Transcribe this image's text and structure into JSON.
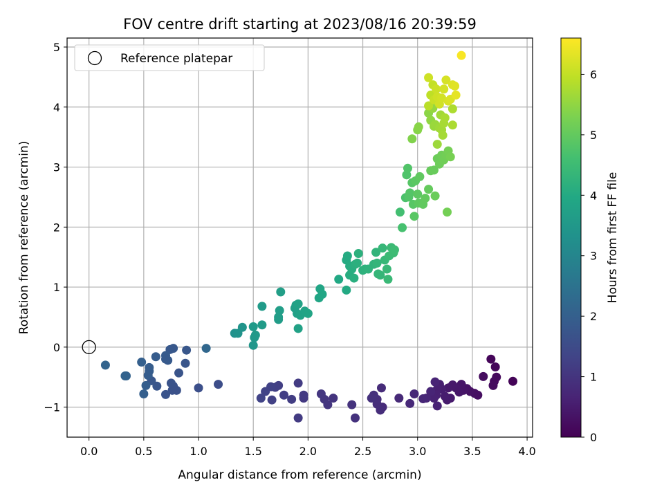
{
  "chart_data": {
    "type": "scatter",
    "title": "FOV centre drift starting at 2023/08/16 20:39:59",
    "xlabel": "Angular distance from reference (arcmin)",
    "ylabel": "Rotation from reference (arcmin)",
    "xlim": [
      -0.2,
      4.05
    ],
    "ylim": [
      -1.5,
      5.15
    ],
    "xticks": [
      0.0,
      0.5,
      1.0,
      1.5,
      2.0,
      2.5,
      3.0,
      3.5,
      4.0
    ],
    "xtick_labels": [
      "0.0",
      "0.5",
      "1.0",
      "1.5",
      "2.0",
      "2.5",
      "3.0",
      "3.5",
      "4.0"
    ],
    "yticks": [
      -1,
      0,
      1,
      2,
      3,
      4,
      5
    ],
    "ytick_labels": [
      "−1",
      "0",
      "1",
      "2",
      "3",
      "4",
      "5"
    ],
    "grid": true,
    "colormap": "viridis",
    "colorbar": {
      "label": "Hours from first FF file",
      "range": [
        0,
        6.6
      ],
      "ticks": [
        0,
        1,
        2,
        3,
        4,
        5,
        6
      ],
      "tick_labels": [
        "0",
        "1",
        "2",
        "3",
        "4",
        "5",
        "6"
      ]
    },
    "legend": {
      "placement": "top-left",
      "entries": [
        {
          "label": "Reference platepar",
          "marker": "open-circle"
        }
      ]
    },
    "reference_point": {
      "x": 0.0,
      "y": 0.0
    },
    "series": [
      {
        "columns": [
          "x",
          "y",
          "hours"
        ],
        "points": [
          [
            3.87,
            -0.57,
            0.05
          ],
          [
            3.67,
            -0.2,
            0.1
          ],
          [
            3.71,
            -0.33,
            0.12
          ],
          [
            3.72,
            -0.5,
            0.15
          ],
          [
            3.7,
            -0.57,
            0.17
          ],
          [
            3.69,
            -0.64,
            0.2
          ],
          [
            3.6,
            -0.49,
            0.22
          ],
          [
            3.55,
            -0.8,
            0.25
          ],
          [
            3.52,
            -0.77,
            0.27
          ],
          [
            3.48,
            -0.74,
            0.3
          ],
          [
            3.45,
            -0.69,
            0.32
          ],
          [
            3.42,
            -0.72,
            0.35
          ],
          [
            3.4,
            -0.62,
            0.37
          ],
          [
            3.38,
            -0.75,
            0.4
          ],
          [
            3.35,
            -0.68,
            0.42
          ],
          [
            3.32,
            -0.63,
            0.44
          ],
          [
            3.28,
            -0.68,
            0.46
          ],
          [
            3.3,
            -0.85,
            0.48
          ],
          [
            3.27,
            -0.88,
            0.5
          ],
          [
            3.25,
            -0.82,
            0.52
          ],
          [
            3.22,
            -0.7,
            0.54
          ],
          [
            3.2,
            -0.62,
            0.56
          ],
          [
            3.18,
            -0.7,
            0.58
          ],
          [
            3.17,
            -0.8,
            0.6
          ],
          [
            3.15,
            -0.85,
            0.62
          ],
          [
            3.18,
            -0.98,
            0.64
          ],
          [
            3.16,
            -0.58,
            0.66
          ],
          [
            3.12,
            -0.74,
            0.68
          ],
          [
            3.08,
            -0.85,
            0.7
          ],
          [
            3.05,
            -0.86,
            0.72
          ],
          [
            2.97,
            -0.78,
            0.74
          ],
          [
            2.93,
            -0.94,
            0.76
          ],
          [
            2.83,
            -0.85,
            0.78
          ],
          [
            2.68,
            -1.0,
            0.8
          ],
          [
            2.67,
            -0.68,
            0.82
          ],
          [
            2.66,
            -1.05,
            0.84
          ],
          [
            2.63,
            -0.95,
            0.86
          ],
          [
            2.63,
            -0.87,
            0.88
          ],
          [
            2.6,
            -0.8,
            0.9
          ],
          [
            2.58,
            -0.85,
            0.92
          ],
          [
            2.43,
            -1.18,
            0.95
          ],
          [
            2.4,
            -0.96,
            0.97
          ],
          [
            2.23,
            -0.85,
            1.0
          ],
          [
            2.18,
            -0.96,
            1.02
          ],
          [
            2.15,
            -0.87,
            1.04
          ],
          [
            2.12,
            -0.78,
            1.06
          ],
          [
            1.96,
            -0.85,
            1.09
          ],
          [
            1.96,
            -0.8,
            1.12
          ],
          [
            1.91,
            -1.18,
            1.14
          ],
          [
            1.91,
            -0.6,
            1.16
          ],
          [
            1.85,
            -0.87,
            1.18
          ],
          [
            1.78,
            -0.8,
            1.2
          ],
          [
            1.73,
            -0.64,
            1.22
          ],
          [
            1.7,
            -0.67,
            1.24
          ],
          [
            1.67,
            -0.88,
            1.26
          ],
          [
            1.66,
            -0.66,
            1.28
          ],
          [
            1.61,
            -0.74,
            1.3
          ],
          [
            1.57,
            -0.85,
            1.32
          ],
          [
            1.18,
            -0.62,
            1.55
          ],
          [
            1.0,
            -0.68,
            1.6
          ],
          [
            0.88,
            -0.27,
            1.75
          ],
          [
            0.89,
            -0.05,
            1.78
          ],
          [
            0.82,
            -0.43,
            1.7
          ],
          [
            0.8,
            -0.72,
            1.65
          ],
          [
            0.77,
            -0.65,
            1.67
          ],
          [
            0.77,
            -0.02,
            1.8
          ],
          [
            0.76,
            -0.72,
            1.66
          ],
          [
            0.75,
            -0.6,
            1.68
          ],
          [
            0.74,
            -0.04,
            1.82
          ],
          [
            0.72,
            -0.22,
            1.85
          ],
          [
            0.7,
            -0.14,
            1.87
          ],
          [
            0.7,
            -0.2,
            1.86
          ],
          [
            0.7,
            -0.79,
            1.72
          ],
          [
            0.62,
            -0.65,
            1.74
          ],
          [
            0.61,
            -0.16,
            1.9
          ],
          [
            0.57,
            -0.56,
            1.76
          ],
          [
            0.55,
            -0.34,
            1.92
          ],
          [
            0.55,
            -0.4,
            1.93
          ],
          [
            0.54,
            -0.47,
            1.94
          ],
          [
            0.52,
            -0.64,
            1.96
          ],
          [
            0.5,
            -0.78,
            1.97
          ],
          [
            0.48,
            -0.25,
            2.0
          ],
          [
            0.34,
            -0.48,
            2.05
          ],
          [
            0.33,
            -0.48,
            2.08
          ],
          [
            0.15,
            -0.3,
            2.12
          ],
          [
            1.07,
            -0.02,
            2.2
          ],
          [
            1.33,
            0.23,
            3.3
          ],
          [
            1.36,
            0.23,
            3.35
          ],
          [
            1.4,
            0.33,
            3.4
          ],
          [
            1.5,
            0.03,
            3.45
          ],
          [
            1.51,
            0.16,
            3.5
          ],
          [
            1.52,
            0.2,
            3.52
          ],
          [
            1.5,
            0.34,
            3.55
          ],
          [
            1.58,
            0.68,
            3.58
          ],
          [
            1.58,
            0.37,
            3.6
          ],
          [
            1.73,
            0.46,
            3.62
          ],
          [
            1.73,
            0.5,
            3.64
          ],
          [
            1.74,
            0.61,
            3.66
          ],
          [
            1.75,
            0.92,
            3.68
          ],
          [
            1.88,
            0.65,
            3.7
          ],
          [
            1.89,
            0.7,
            3.72
          ],
          [
            1.9,
            0.56,
            3.74
          ],
          [
            1.91,
            0.31,
            3.76
          ],
          [
            1.91,
            0.72,
            3.78
          ],
          [
            1.93,
            0.53,
            3.8
          ],
          [
            1.97,
            0.6,
            3.82
          ],
          [
            2.0,
            0.56,
            3.84
          ],
          [
            2.1,
            0.82,
            3.86
          ],
          [
            2.11,
            0.97,
            3.88
          ],
          [
            2.13,
            0.88,
            3.9
          ],
          [
            2.28,
            1.13,
            3.95
          ],
          [
            2.35,
            0.95,
            4.0
          ],
          [
            2.35,
            1.45,
            4.02
          ],
          [
            2.36,
            1.52,
            4.04
          ],
          [
            2.38,
            1.35,
            4.06
          ],
          [
            2.38,
            1.2,
            4.08
          ],
          [
            2.4,
            1.3,
            4.1
          ],
          [
            2.42,
            1.15,
            4.12
          ],
          [
            2.43,
            1.38,
            4.14
          ],
          [
            2.45,
            1.4,
            4.16
          ],
          [
            2.46,
            1.56,
            4.18
          ],
          [
            2.5,
            1.28,
            4.2
          ],
          [
            2.52,
            1.3,
            4.22
          ],
          [
            2.55,
            1.3,
            4.24
          ],
          [
            2.6,
            1.38,
            4.26
          ],
          [
            2.62,
            1.58,
            4.28
          ],
          [
            2.63,
            1.4,
            4.3
          ],
          [
            2.64,
            1.22,
            4.32
          ],
          [
            2.66,
            1.2,
            4.34
          ],
          [
            2.68,
            1.65,
            4.36
          ],
          [
            2.7,
            1.45,
            4.38
          ],
          [
            2.72,
            1.3,
            4.4
          ],
          [
            2.73,
            1.13,
            4.42
          ],
          [
            2.74,
            1.52,
            4.44
          ],
          [
            2.76,
            1.66,
            4.46
          ],
          [
            2.78,
            1.57,
            4.48
          ],
          [
            2.79,
            1.62,
            4.5
          ],
          [
            2.84,
            2.25,
            4.6
          ],
          [
            2.86,
            1.99,
            4.65
          ],
          [
            2.89,
            2.49,
            4.7
          ],
          [
            2.9,
            2.87,
            4.75
          ],
          [
            2.91,
            2.98,
            4.78
          ],
          [
            2.92,
            2.5,
            4.8
          ],
          [
            2.93,
            2.57,
            4.82
          ],
          [
            2.95,
            2.74,
            4.84
          ],
          [
            2.96,
            2.38,
            4.86
          ],
          [
            2.97,
            2.18,
            4.88
          ],
          [
            2.98,
            2.77,
            4.9
          ],
          [
            3.0,
            2.55,
            4.92
          ],
          [
            3.01,
            2.4,
            4.94
          ],
          [
            3.02,
            2.84,
            4.96
          ],
          [
            3.05,
            2.38,
            4.98
          ],
          [
            3.07,
            2.48,
            5.0
          ],
          [
            3.1,
            2.63,
            5.02
          ],
          [
            3.12,
            2.94,
            5.04
          ],
          [
            3.15,
            2.95,
            5.06
          ],
          [
            3.16,
            2.52,
            5.08
          ],
          [
            3.18,
            3.14,
            5.1
          ],
          [
            3.2,
            3.05,
            5.12
          ],
          [
            3.22,
            3.2,
            5.14
          ],
          [
            3.24,
            3.12,
            5.16
          ],
          [
            3.26,
            3.2,
            5.18
          ],
          [
            3.27,
            2.25,
            5.2
          ],
          [
            3.28,
            3.27,
            5.22
          ],
          [
            3.3,
            3.17,
            5.24
          ],
          [
            2.95,
            3.47,
            5.35
          ],
          [
            3.0,
            3.62,
            5.4
          ],
          [
            3.01,
            3.67,
            5.42
          ],
          [
            3.1,
            3.9,
            5.45
          ],
          [
            3.12,
            3.78,
            5.5
          ],
          [
            3.14,
            3.98,
            5.55
          ],
          [
            3.15,
            3.68,
            5.58
          ],
          [
            3.16,
            3.71,
            5.6
          ],
          [
            3.18,
            3.38,
            5.62
          ],
          [
            3.2,
            3.65,
            5.64
          ],
          [
            3.21,
            3.87,
            5.66
          ],
          [
            3.22,
            3.62,
            5.68
          ],
          [
            3.23,
            3.53,
            5.7
          ],
          [
            3.24,
            3.73,
            5.72
          ],
          [
            3.25,
            3.82,
            5.74
          ],
          [
            3.32,
            3.7,
            5.76
          ],
          [
            3.32,
            3.97,
            5.78
          ],
          [
            3.1,
            4.02,
            5.9
          ],
          [
            3.12,
            4.2,
            5.95
          ],
          [
            3.14,
            4.37,
            6.0
          ],
          [
            3.15,
            4.12,
            6.05
          ],
          [
            3.17,
            4.3,
            6.08
          ],
          [
            3.1,
            4.49,
            6.1
          ],
          [
            3.18,
            4.17,
            6.12
          ],
          [
            3.2,
            4.05,
            6.14
          ],
          [
            3.22,
            4.15,
            6.16
          ],
          [
            3.24,
            4.3,
            6.18
          ],
          [
            3.26,
            4.45,
            6.2
          ],
          [
            3.28,
            4.1,
            6.22
          ],
          [
            3.3,
            4.13,
            6.24
          ],
          [
            3.32,
            4.37,
            6.26
          ],
          [
            3.34,
            4.35,
            6.3
          ],
          [
            3.35,
            4.2,
            6.35
          ],
          [
            3.4,
            4.86,
            6.55
          ]
        ]
      }
    ]
  }
}
